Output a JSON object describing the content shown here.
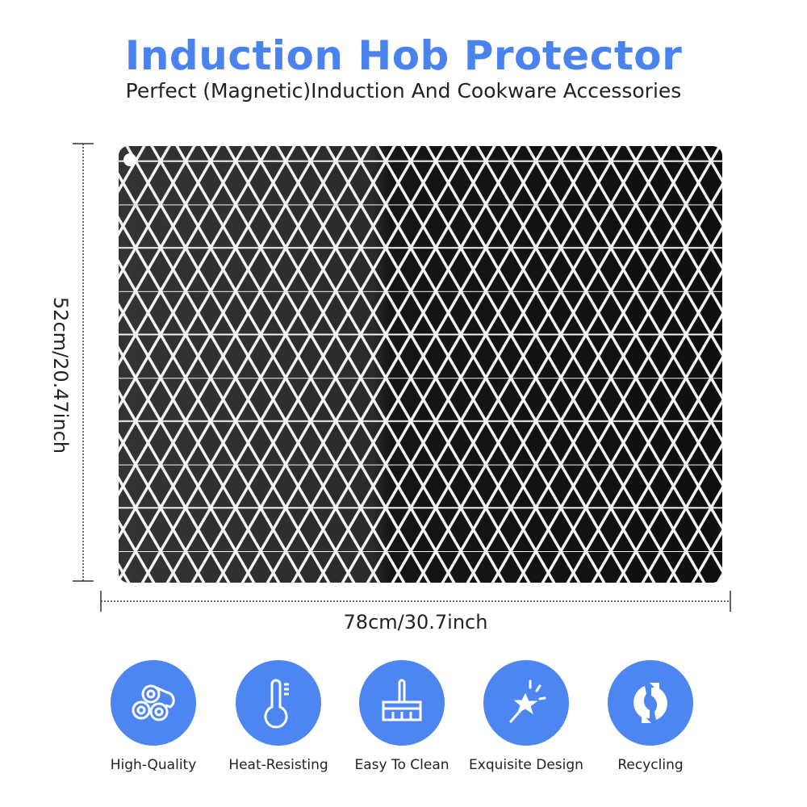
{
  "header": {
    "title": "Induction Hob Protector",
    "subtitle": "Perfect (Magnetic)Induction And Cookware Accessories"
  },
  "dimensions": {
    "height_label": "52cm/20.47inch",
    "width_label": "78cm/30.7inch"
  },
  "colors": {
    "accent": "#4d86f1",
    "title": "#4a82ee",
    "mat_left": "#2f2f2f",
    "mat_right": "#121212"
  },
  "features": [
    {
      "label": "High-Quality",
      "icon": "rolls-icon"
    },
    {
      "label": "Heat-Resisting",
      "icon": "thermometer-icon"
    },
    {
      "label": "Easy To Clean",
      "icon": "broom-icon"
    },
    {
      "label": "Exquisite Design",
      "icon": "magic-wand-icon"
    },
    {
      "label": "Recycling",
      "icon": "recycle-icon"
    }
  ]
}
